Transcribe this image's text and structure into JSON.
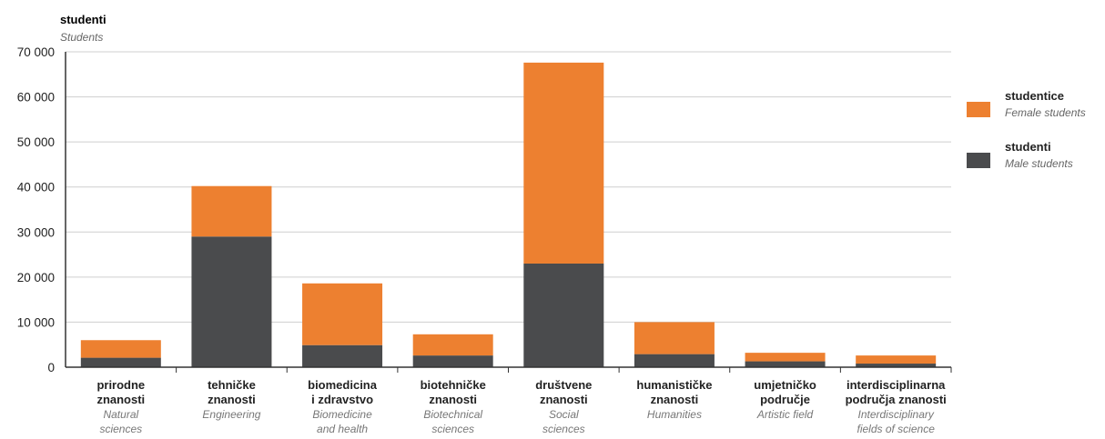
{
  "colors": {
    "female": "#ED8030",
    "male": "#4A4B4D",
    "grid": "#cfcfcf",
    "axis": "#333333"
  },
  "chart_data": {
    "type": "bar",
    "stacked": true,
    "y_label_main": "studenti",
    "y_label_sub": "Students",
    "ylim": [
      0,
      70000
    ],
    "y_ticks": [
      0,
      10000,
      20000,
      30000,
      40000,
      50000,
      60000,
      70000
    ],
    "y_tick_labels": [
      "0",
      "10 000",
      "20 000",
      "30 000",
      "40 000",
      "50 000",
      "60 000",
      "70 000"
    ],
    "grid": true,
    "legend_position": "right",
    "categories": [
      {
        "main": [
          "prirodne",
          "znanosti"
        ],
        "sub": [
          "Natural",
          "sciences"
        ]
      },
      {
        "main": [
          "tehničke",
          "znanosti"
        ],
        "sub": [
          "Engineering"
        ]
      },
      {
        "main": [
          "biomedicina",
          "i zdravstvo"
        ],
        "sub": [
          "Biomedicine",
          "and health"
        ]
      },
      {
        "main": [
          "biotehničke",
          "znanosti"
        ],
        "sub": [
          "Biotechnical",
          "sciences"
        ]
      },
      {
        "main": [
          "društvene",
          "znanosti"
        ],
        "sub": [
          "Social",
          "sciences"
        ]
      },
      {
        "main": [
          "humanističke",
          "znanosti"
        ],
        "sub": [
          "Humanities"
        ]
      },
      {
        "main": [
          "umjetničko",
          "područje"
        ],
        "sub": [
          "Artistic field"
        ]
      },
      {
        "main": [
          "interdisciplinarna",
          "područja znanosti"
        ],
        "sub": [
          "Interdisciplinary",
          "fields of science"
        ]
      }
    ],
    "series": [
      {
        "name": "studenti",
        "name_sub": "Male students",
        "color_key": "male",
        "values": [
          2100,
          29000,
          4900,
          2600,
          23000,
          2900,
          1300,
          800
        ]
      },
      {
        "name": "studentice",
        "name_sub": "Female students",
        "color_key": "female",
        "values": [
          3900,
          11200,
          13700,
          4700,
          44600,
          7100,
          1900,
          1800
        ]
      }
    ]
  }
}
